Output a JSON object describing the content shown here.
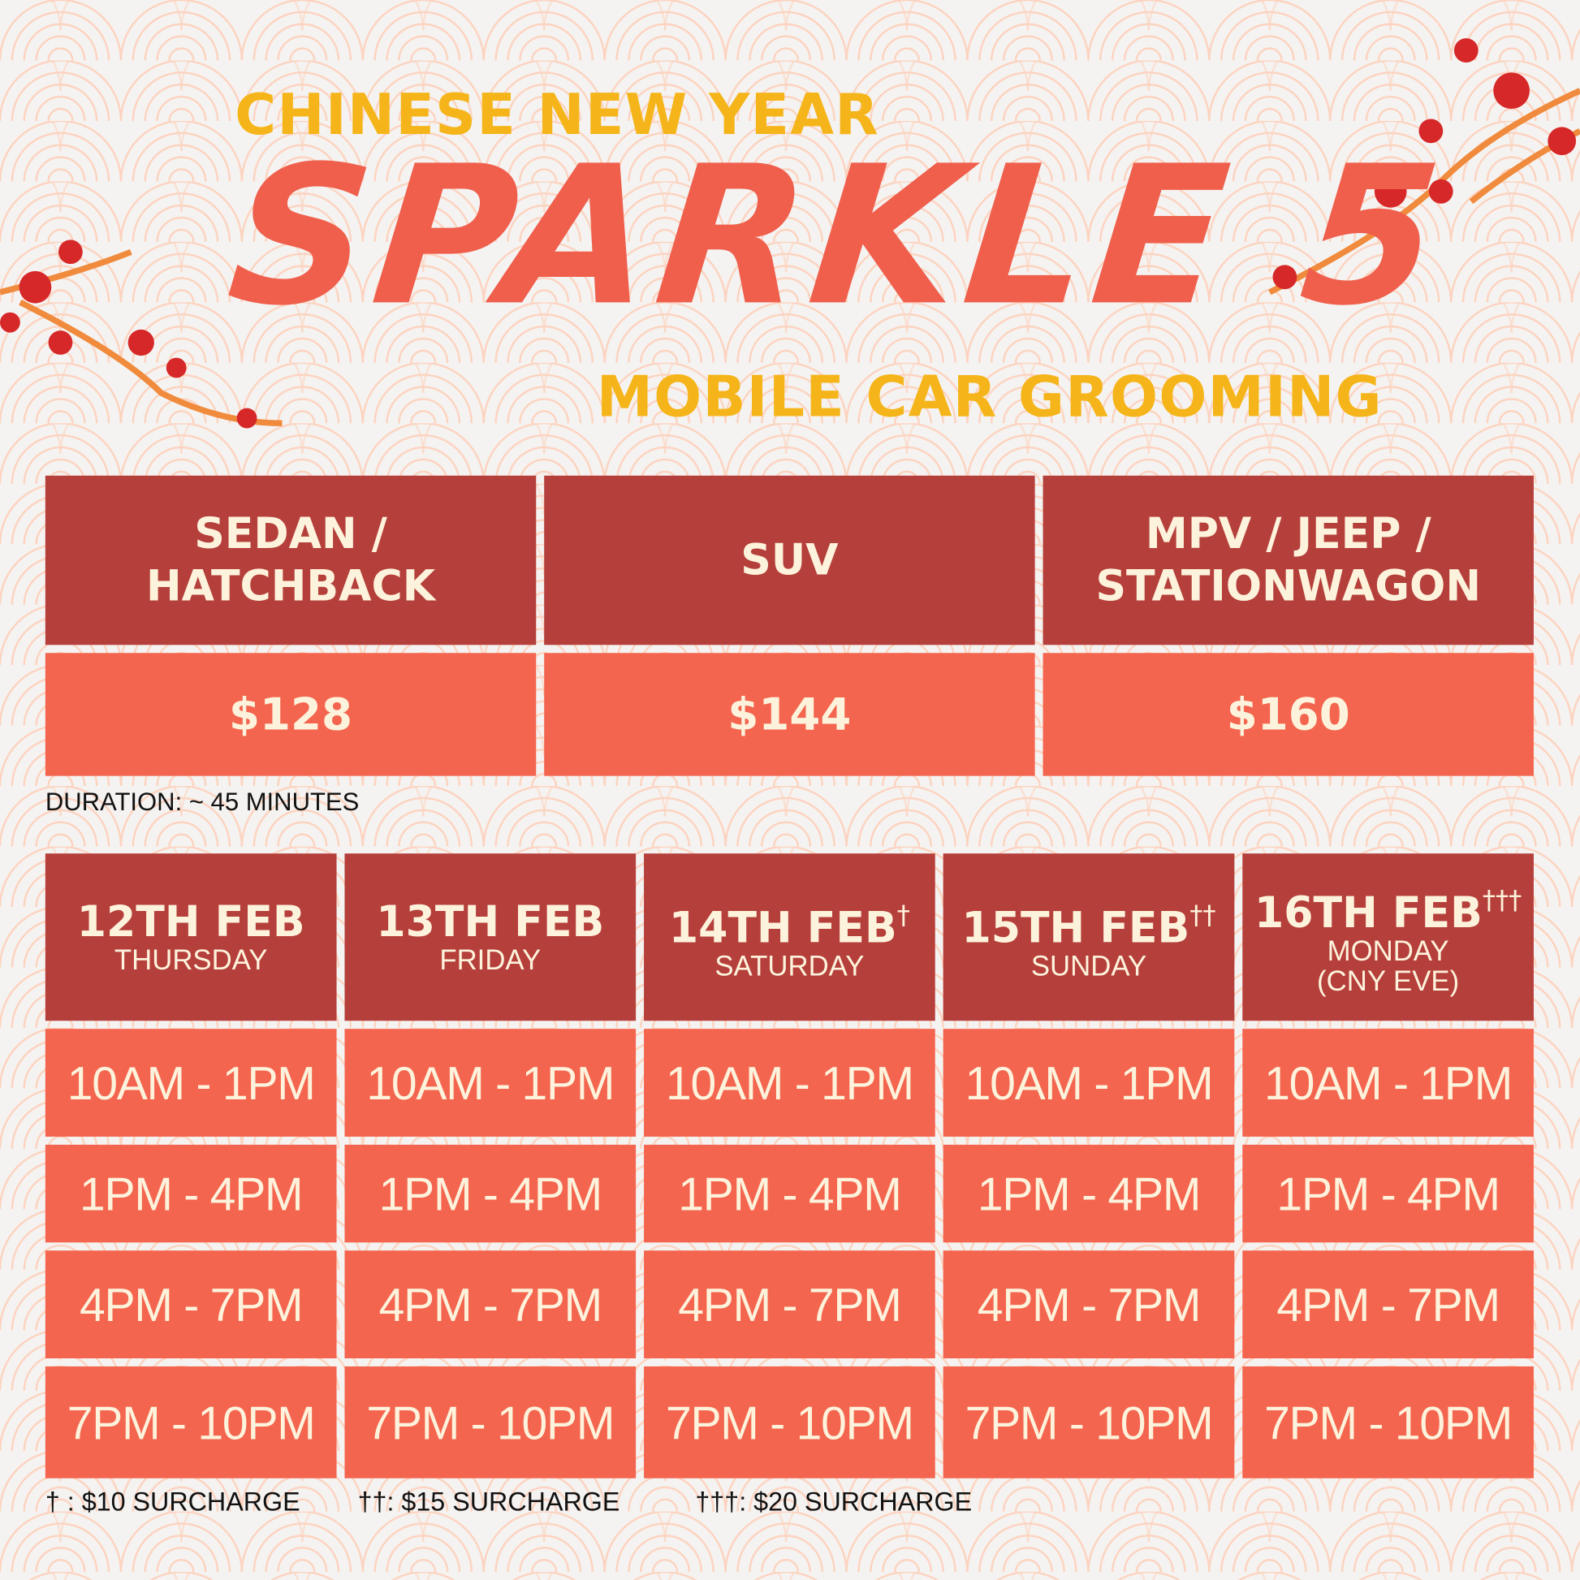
{
  "header": {
    "line1": "CHINESE NEW YEAR",
    "title": "SPARKLE 5",
    "line2": "MOBILE CAR GROOMING"
  },
  "pricing": [
    {
      "vehicle_line1": "SEDAN /",
      "vehicle_line2": "HATCHBACK",
      "price": "$128"
    },
    {
      "vehicle_line1": "SUV",
      "vehicle_line2": "",
      "price": "$144"
    },
    {
      "vehicle_line1": "MPV / JEEP /",
      "vehicle_line2": "STATIONWAGON",
      "price": "$160"
    }
  ],
  "duration": "DURATION: ~ 45 MINUTES",
  "schedule": {
    "days": [
      {
        "date": "12TH FEB",
        "mark": "",
        "day": "THURSDAY",
        "day2": ""
      },
      {
        "date": "13TH FEB",
        "mark": "",
        "day": "FRIDAY",
        "day2": ""
      },
      {
        "date": "14TH FEB",
        "mark": "†",
        "day": "SATURDAY",
        "day2": ""
      },
      {
        "date": "15TH FEB",
        "mark": "††",
        "day": "SUNDAY",
        "day2": ""
      },
      {
        "date": "16TH FEB",
        "mark": "†††",
        "day": "MONDAY",
        "day2": "(CNY EVE)"
      }
    ],
    "slots": [
      "10AM - 1PM",
      "1PM - 4PM",
      "4PM - 7PM",
      "7PM - 10PM"
    ]
  },
  "footnotes": [
    "† : $10 SURCHARGE",
    "††: $15 SURCHARGE",
    "†††: $20 SURCHARGE"
  ],
  "colors": {
    "header": "#b53f3b",
    "cell": "#f4654f",
    "text": "#fdf3dc",
    "accent": "#f5b51a",
    "title": "#ef5f4c",
    "pattern": "#fcd3c0"
  }
}
